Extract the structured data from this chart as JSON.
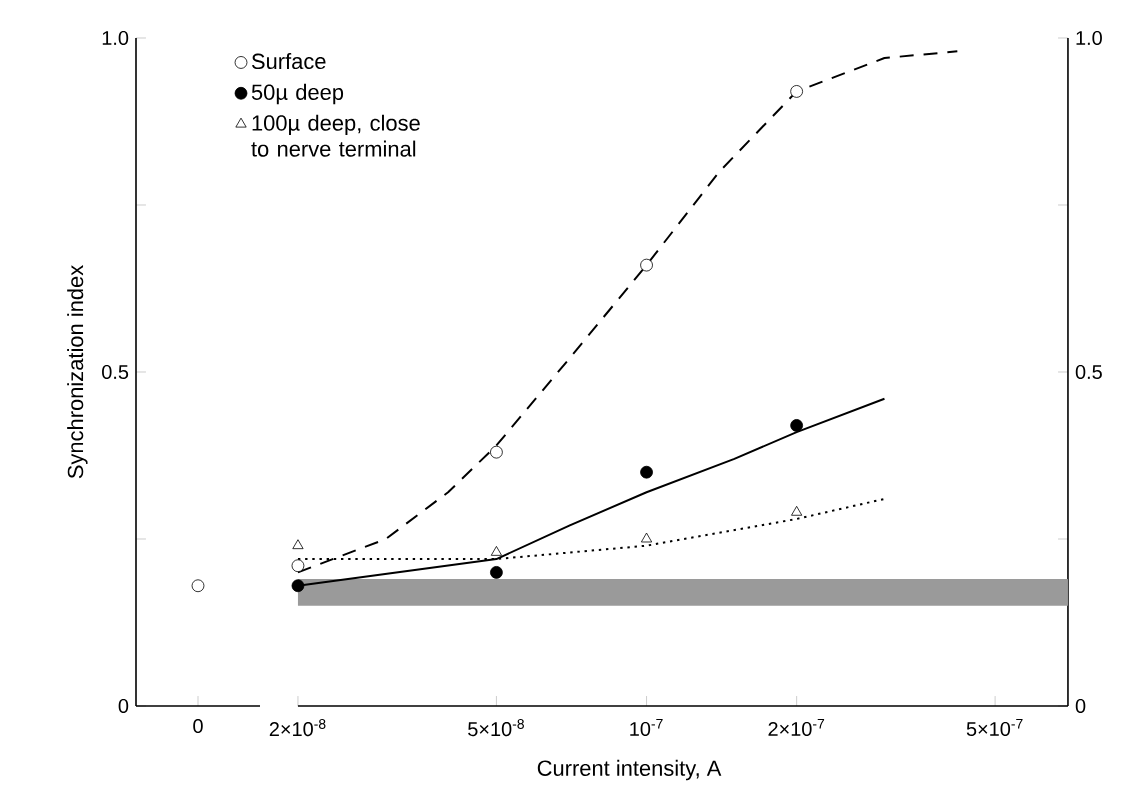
{
  "chart_data": [
    {
      "type": "scatter",
      "ylabel": "Synchronization index",
      "categories": [
        "0"
      ],
      "ylim": [
        0,
        1
      ],
      "yticks": [
        0,
        {
          "value": 0.25,
          "label": null
        },
        0.5,
        {
          "value": 0.75,
          "label": null
        },
        {
          "value": 1,
          "label": "1.0"
        }
      ],
      "series": [
        {
          "marker": "circle",
          "color": "#ffffff",
          "values": [
            0.18
          ]
        }
      ]
    },
    {
      "type": "scatter",
      "xlabel": "Current intensity, A",
      "log": "x",
      "legend": "top left",
      "xlim": [
        2e-08,
        7e-07
      ],
      "ylim": [
        0,
        1
      ],
      "xticks": [
        {
          "value": 2e-08,
          "label": "2×10$^{-8}$"
        },
        {
          "value": 5e-08,
          "label": "5×10$^{-8}$"
        },
        {
          "value": 1e-07,
          "label": "10$^{-7}$"
        },
        {
          "value": 2e-07,
          "label": "2×10$^{-7}$"
        },
        {
          "value": 5e-07,
          "label": "5×10$^{-7}$"
        }
      ],
      "yticks": [
        0,
        {
          "value": 0.25,
          "label": null
        },
        0.5,
        {
          "value": 0.75,
          "label": null
        },
        {
          "value": 1,
          "label": "1.0"
        }
      ],
      "bands": [
        {
          "axis": "y",
          "from": 0.15,
          "to": 0.19,
          "color": "#9a9a9a"
        }
      ],
      "series": [
        {
          "name": "Surface",
          "marker": "circle",
          "color": "#ffffff",
          "x": [
            2e-08,
            5e-08,
            1e-07,
            2e-07
          ],
          "values": [
            0.21,
            0.38,
            0.66,
            0.92
          ]
        },
        {
          "name": "50µ deep",
          "marker": "circle",
          "color": "#000000",
          "x": [
            2e-08,
            5e-08,
            1e-07,
            2e-07
          ],
          "values": [
            0.18,
            0.2,
            0.35,
            0.42
          ]
        },
        {
          "name": "100µ deep, close to nerve terminal",
          "marker": "triangle",
          "color": "#ffffff",
          "x": [
            2e-08,
            5e-08,
            1e-07,
            2e-07
          ],
          "values": [
            0.24,
            0.23,
            0.25,
            0.29
          ]
        },
        {
          "type": "line",
          "line_style": "dashed",
          "marker": "none",
          "color": "#000000",
          "x": [
            2e-08,
            3e-08,
            4e-08,
            5e-08,
            7e-08,
            1e-07,
            1.4e-07,
            2e-07,
            3e-07,
            4.2e-07
          ],
          "values": [
            0.2,
            0.25,
            0.32,
            0.39,
            0.52,
            0.66,
            0.8,
            0.92,
            0.97,
            0.98
          ]
        },
        {
          "type": "line",
          "line_style": "solid",
          "marker": "none",
          "color": "#000000",
          "x": [
            2e-08,
            5e-08,
            7e-08,
            1e-07,
            1.5e-07,
            2e-07,
            3e-07
          ],
          "values": [
            0.18,
            0.22,
            0.27,
            0.32,
            0.37,
            0.41,
            0.46
          ]
        },
        {
          "type": "line",
          "line_style": "dotted",
          "marker": "none",
          "color": "#000000",
          "x": [
            2e-08,
            5e-08,
            1e-07,
            2e-07,
            3e-07
          ],
          "values": [
            0.22,
            0.22,
            0.24,
            0.28,
            0.31
          ]
        }
      ]
    }
  ]
}
